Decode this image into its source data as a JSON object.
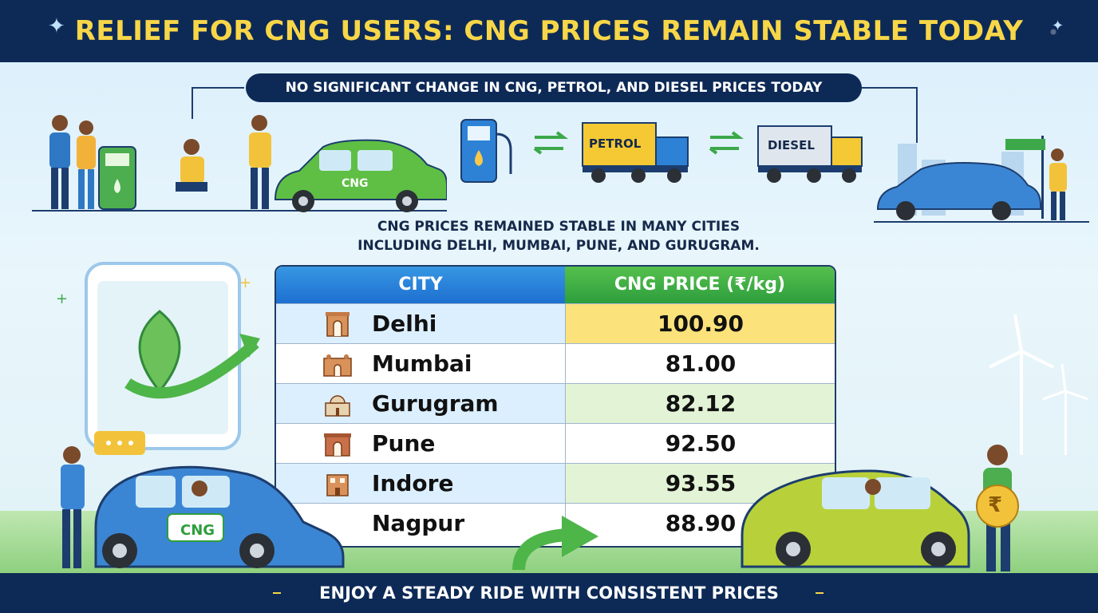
{
  "banner": {
    "title": "RELIEF FOR CNG USERS: CNG PRICES REMAIN STABLE TODAY",
    "subtitle": "NO SIGNIFICANT CHANGE IN CNG, PETROL, AND DIESEL PRICES TODAY"
  },
  "illustration": {
    "car_label_top": "CNG",
    "truck_petrol_label": "PETROL",
    "truck_diesel_label": "DIESEL",
    "car_label_bottom": "CNG",
    "rupee_symbol": "₹"
  },
  "note": {
    "line1": "CNG PRICES REMAINED STABLE IN MANY CITIES",
    "line2": "INCLUDING DELHI, MUMBAI, PUNE, AND GURUGRAM."
  },
  "table": {
    "col_city": "CITY",
    "col_price": "CNG PRICE (₹/kg)",
    "rows": [
      {
        "city": "Delhi",
        "price": "100.90"
      },
      {
        "city": "Mumbai",
        "price": "81.00"
      },
      {
        "city": "Gurugram",
        "price": "82.12"
      },
      {
        "city": "Pune",
        "price": "92.50"
      },
      {
        "city": "Indore",
        "price": "93.55"
      },
      {
        "city": "Nagpur",
        "price": "88.90"
      }
    ]
  },
  "footer": {
    "text": "ENJOY A STEADY RIDE WITH CONSISTENT PRICES"
  },
  "colors": {
    "navy": "#0d2a57",
    "title_yellow": "#f7d648",
    "header_blue": "#1d6fd0",
    "header_green": "#2d9e3d",
    "highlight_yellow": "#fbe27a",
    "row_blue": "#dcefff",
    "row_green": "#e3f4d6"
  }
}
